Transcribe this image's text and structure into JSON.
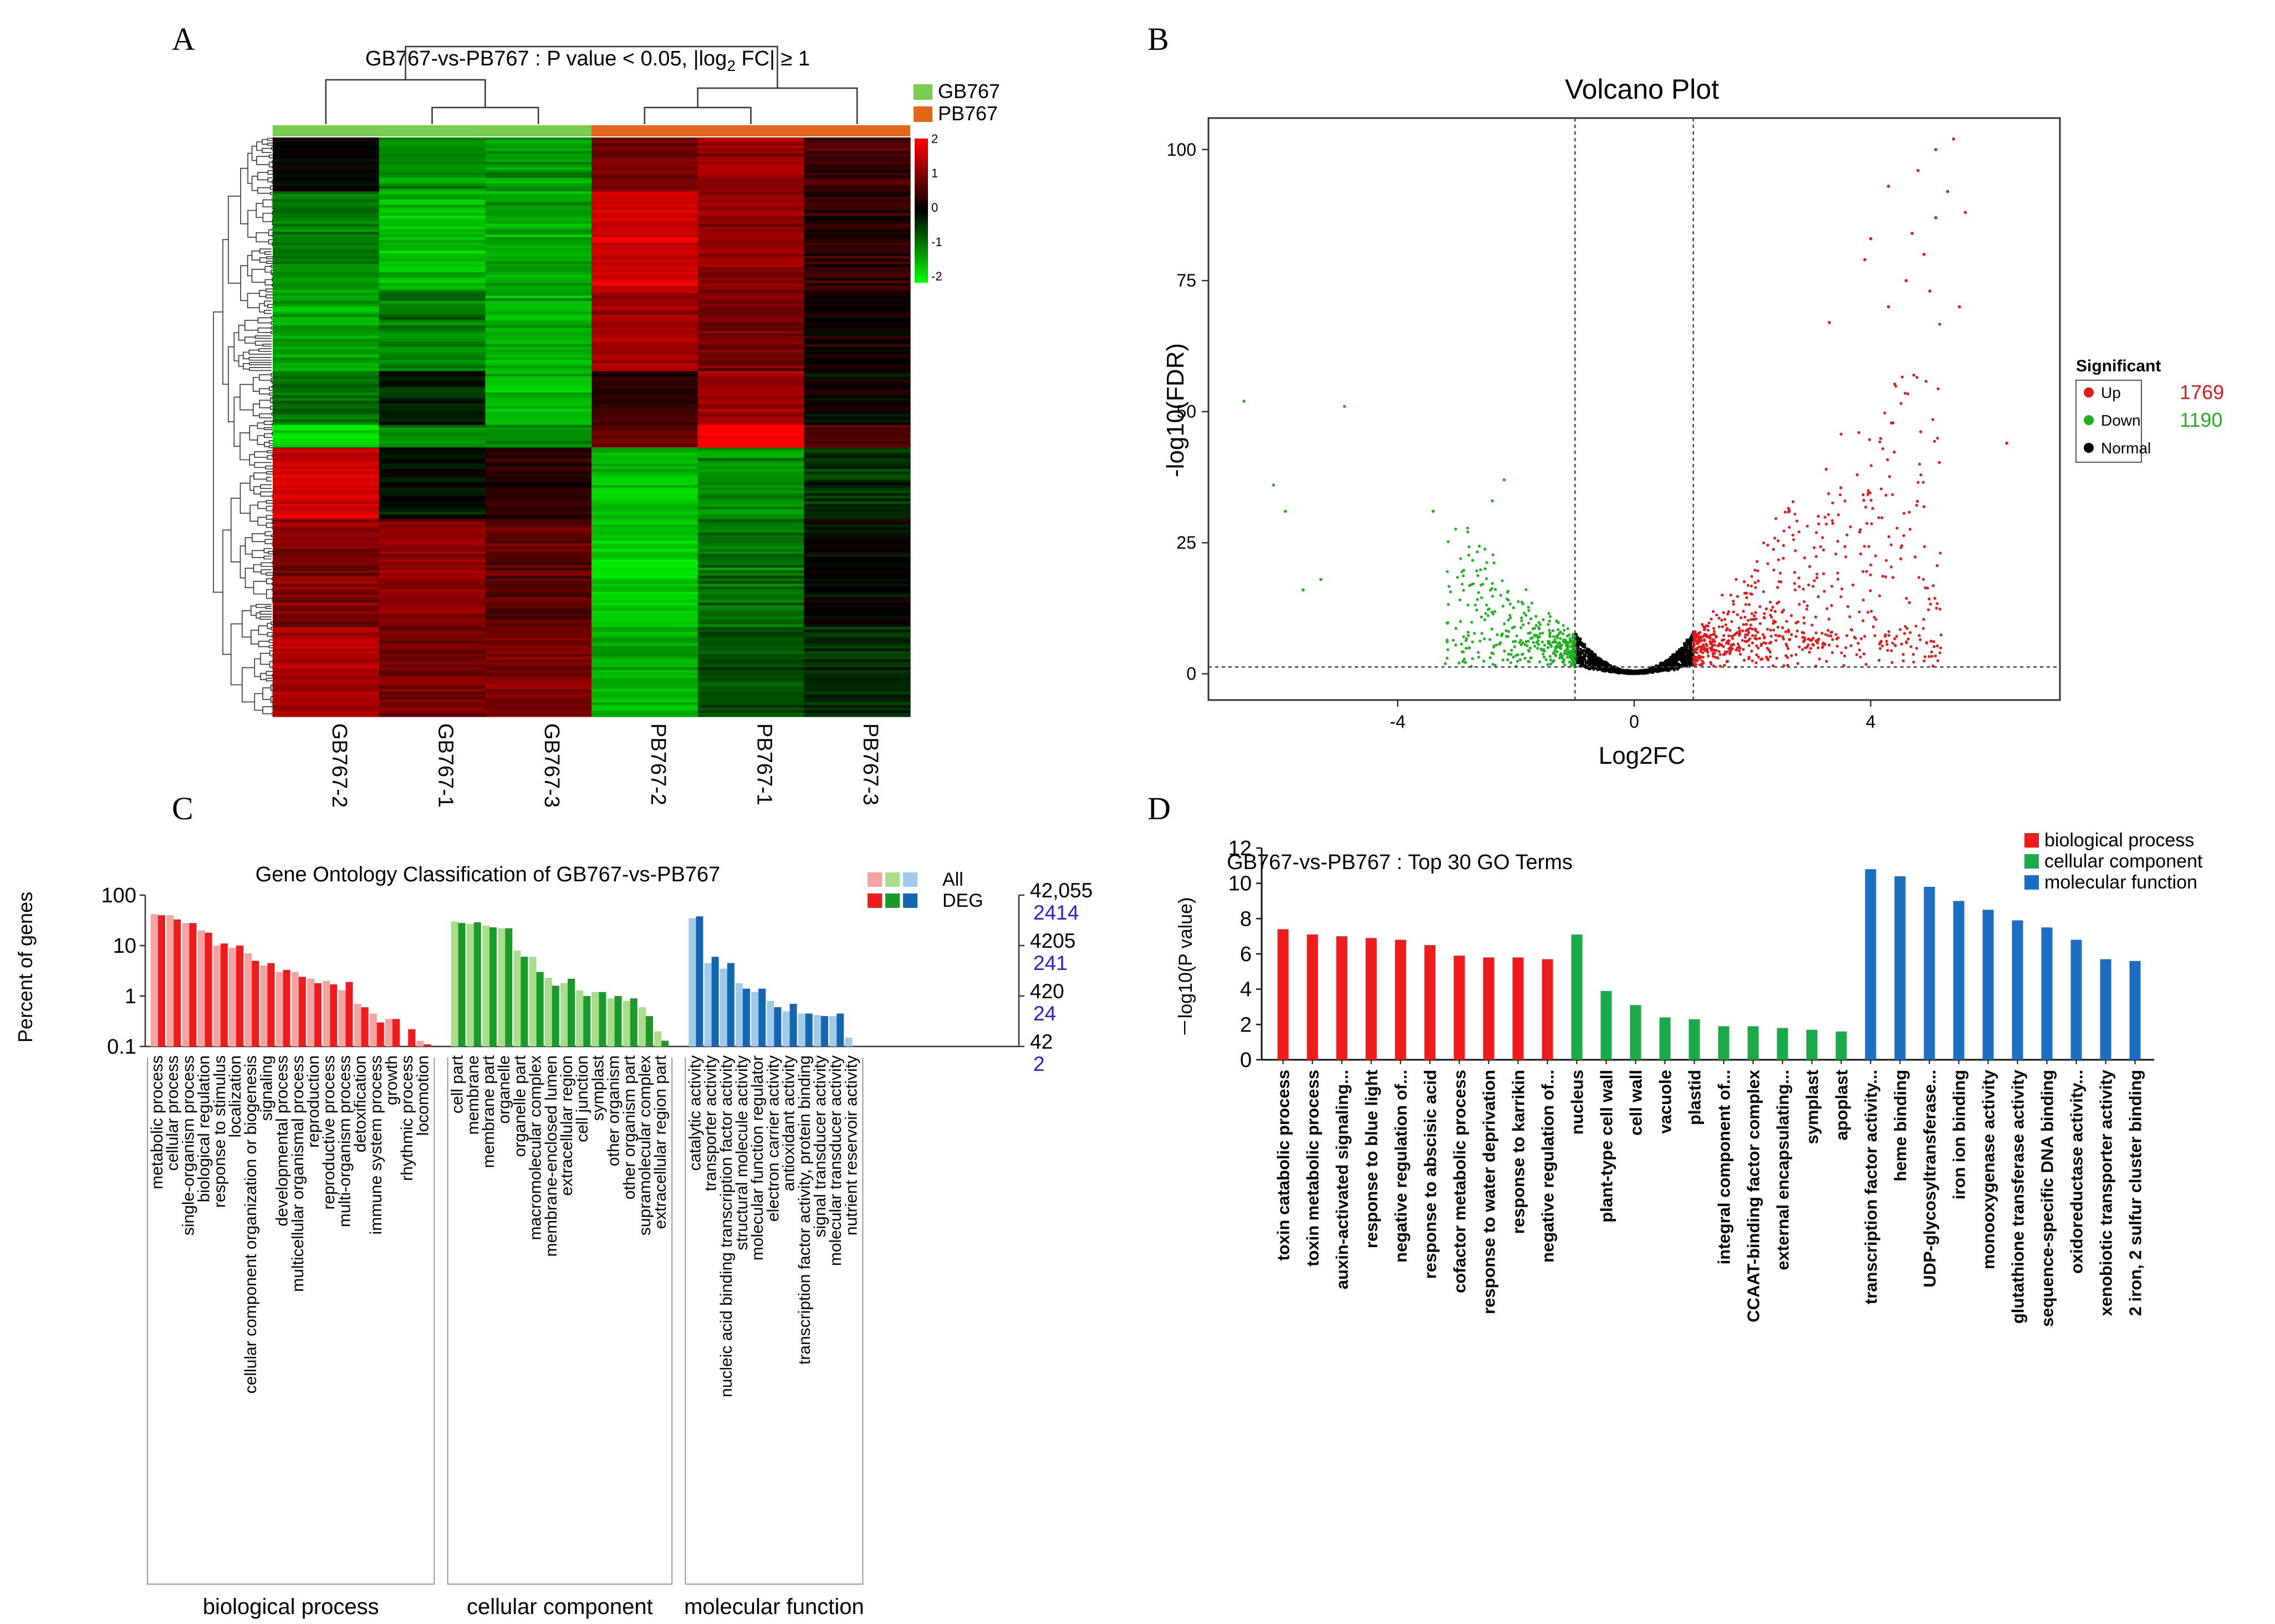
{
  "panels": {
    "A": {
      "letter": "A",
      "title_prefix": "GB767-vs-PB767 : P value < 0.05, |log",
      "title_sub": "2",
      "title_suffix": " FC| ≥ 1",
      "groups": [
        {
          "name": "GB767",
          "color": "#7acc4f"
        },
        {
          "name": "PB767",
          "color": "#e2661c"
        }
      ],
      "samples": [
        "GB767-2",
        "GB767-1",
        "GB767-3",
        "PB767-2",
        "PB767-1",
        "PB767-3"
      ],
      "scale_ticks": [
        "2",
        "1",
        "0",
        "-1",
        "-2"
      ],
      "colors": {
        "high": "#ff0000",
        "mid": "#000000",
        "low": "#00ff00"
      }
    },
    "B": {
      "letter": "B",
      "title": "Volcano Plot",
      "xlabel": "Log2FC",
      "ylabel": "-log10(FDR)",
      "x_ticks": [
        "-4",
        "0",
        "4"
      ],
      "y_ticks": [
        "0",
        "25",
        "50",
        "75",
        "100"
      ],
      "legend": {
        "title": "Significant",
        "items": [
          {
            "label": "Up",
            "color": "#e31a1c",
            "count": "1769"
          },
          {
            "label": "Down",
            "color": "#1fb21f",
            "count": "1190"
          },
          {
            "label": "Normal",
            "color": "#000000",
            "count": ""
          }
        ]
      }
    },
    "C": {
      "letter": "C",
      "title": "Gene Ontology Classification of GB767-vs-PB767",
      "ylabel": "Percent of genes",
      "left_ticks": [
        "100",
        "10",
        "1",
        "0.1"
      ],
      "right_all": [
        "42,055",
        "4205",
        "420",
        "42"
      ],
      "right_deg": [
        "2414",
        "241",
        "24",
        "2"
      ],
      "legend_all": "All",
      "legend_deg": "DEG",
      "deg_color": "#2222dd"
    },
    "D": {
      "letter": "D",
      "title": "GB767-vs-PB767 : Top 30 GO Terms",
      "ylabel": "－log10(P value)",
      "y_ticks": [
        "0",
        "2",
        "4",
        "6",
        "8",
        "10",
        "12"
      ],
      "legend": [
        {
          "label": "biological process",
          "color": "#ee1c1c"
        },
        {
          "label": "cellular component",
          "color": "#1aaa4a"
        },
        {
          "label": "molecular function",
          "color": "#1b6ec2"
        }
      ]
    }
  },
  "chart_data": [
    {
      "id": "heatmap",
      "type": "heatmap",
      "title": "GB767-vs-PB767 : P value < 0.05, |log2 FC| ≥ 1",
      "columns": [
        "GB767-2",
        "GB767-1",
        "GB767-3",
        "PB767-2",
        "PB767-1",
        "PB767-3"
      ],
      "row_blocks": [
        {
          "rows": 60,
          "values": [
            0.0,
            -0.9,
            -1.0,
            0.7,
            1.0,
            0.4
          ]
        },
        {
          "rows": 110,
          "values": [
            -0.8,
            -1.2,
            -1.0,
            1.3,
            0.9,
            0.3
          ]
        },
        {
          "rows": 90,
          "values": [
            -1.0,
            -0.8,
            -1.1,
            1.0,
            0.7,
            0.1
          ]
        },
        {
          "rows": 60,
          "values": [
            -0.7,
            -0.2,
            -1.2,
            0.3,
            0.9,
            0.0
          ]
        },
        {
          "rows": 25,
          "values": [
            -1.4,
            -0.9,
            -0.9,
            0.6,
            1.6,
            0.5
          ]
        },
        {
          "rows": 80,
          "values": [
            1.3,
            -0.1,
            0.3,
            -1.2,
            -0.9,
            -0.3
          ]
        },
        {
          "rows": 120,
          "values": [
            0.8,
            0.9,
            0.6,
            -1.3,
            -0.7,
            0.0
          ]
        },
        {
          "rows": 100,
          "values": [
            1.1,
            0.7,
            0.8,
            -1.1,
            -0.5,
            -0.3
          ]
        }
      ],
      "color_range": [
        -2,
        2
      ],
      "groups": [
        "GB767",
        "PB767"
      ]
    },
    {
      "id": "volcano",
      "type": "scatter",
      "title": "Volcano Plot",
      "xlabel": "Log2FC",
      "ylabel": "-log10(FDR)",
      "xlim": [
        -7.2,
        7.2
      ],
      "ylim": [
        -5,
        106
      ],
      "fc_threshold": [
        -1,
        1
      ],
      "fdr_threshold": 1.3,
      "series": [
        {
          "name": "Up",
          "count": 1769,
          "labeled_points": [
            [
              5.4,
              102
            ],
            [
              5.1,
              100
            ],
            [
              4.8,
              96
            ],
            [
              5.3,
              92
            ],
            [
              4.3,
              93
            ],
            [
              5.6,
              88
            ],
            [
              5.1,
              87
            ],
            [
              4.7,
              84
            ],
            [
              4.0,
              83
            ],
            [
              4.9,
              80
            ],
            [
              3.9,
              79
            ],
            [
              4.6,
              75
            ],
            [
              5.0,
              73
            ],
            [
              4.3,
              70
            ],
            [
              5.5,
              70
            ],
            [
              3.3,
              67
            ],
            [
              6.3,
              44
            ]
          ]
        },
        {
          "name": "Down",
          "count": 1190,
          "labeled_points": [
            [
              -6.6,
              52
            ],
            [
              -4.9,
              51
            ],
            [
              -6.1,
              36
            ],
            [
              -5.9,
              31
            ],
            [
              -2.2,
              37
            ],
            [
              -5.3,
              18
            ],
            [
              -5.6,
              16
            ],
            [
              -3.4,
              31
            ],
            [
              -2.4,
              33
            ]
          ]
        },
        {
          "name": "Normal"
        }
      ]
    },
    {
      "id": "go_classification",
      "type": "bar",
      "title": "Gene Ontology Classification of GB767-vs-PB767",
      "ylabel": "Percent of genes",
      "yscale": "log",
      "ylim": [
        0.1,
        100
      ],
      "series_names": [
        "All",
        "DEG"
      ],
      "categories": [
        {
          "domain": "biological process",
          "name": "metabolic process",
          "all": 42,
          "deg": 40
        },
        {
          "domain": "biological process",
          "name": "cellular process",
          "all": 40,
          "deg": 33
        },
        {
          "domain": "biological process",
          "name": "single-organism process",
          "all": 28,
          "deg": 28
        },
        {
          "domain": "biological process",
          "name": "biological regulation",
          "all": 20,
          "deg": 18
        },
        {
          "domain": "biological process",
          "name": "response to stimulus",
          "all": 10,
          "deg": 11
        },
        {
          "domain": "biological process",
          "name": "localization",
          "all": 9,
          "deg": 10
        },
        {
          "domain": "biological process",
          "name": "cellular component organization or biogenesis",
          "all": 7,
          "deg": 5
        },
        {
          "domain": "biological process",
          "name": "signaling",
          "all": 4,
          "deg": 4.5
        },
        {
          "domain": "biological process",
          "name": "developmental process",
          "all": 3,
          "deg": 3.3
        },
        {
          "domain": "biological process",
          "name": "multicellular organismal process",
          "all": 3,
          "deg": 2.4
        },
        {
          "domain": "biological process",
          "name": "reproduction",
          "all": 2.2,
          "deg": 1.8
        },
        {
          "domain": "biological process",
          "name": "reproductive process",
          "all": 2,
          "deg": 1.7
        },
        {
          "domain": "biological process",
          "name": "multi-organism process",
          "all": 1.3,
          "deg": 1.9
        },
        {
          "domain": "biological process",
          "name": "detoxification",
          "all": 0.7,
          "deg": 0.6
        },
        {
          "domain": "biological process",
          "name": "immune system process",
          "all": 0.45,
          "deg": 0.3
        },
        {
          "domain": "biological process",
          "name": "growth",
          "all": 0.35,
          "deg": 0.35
        },
        {
          "domain": "biological process",
          "name": "rhythmic process",
          "all": 0.05,
          "deg": 0.22
        },
        {
          "domain": "biological process",
          "name": "locomotion",
          "all": 0.13,
          "deg": 0.11
        },
        {
          "domain": "cellular component",
          "name": "cell part",
          "all": 30,
          "deg": 28
        },
        {
          "domain": "cellular component",
          "name": "membrane",
          "all": 27,
          "deg": 29
        },
        {
          "domain": "cellular component",
          "name": "membrane part",
          "all": 25,
          "deg": 23
        },
        {
          "domain": "cellular component",
          "name": "organelle",
          "all": 22,
          "deg": 22
        },
        {
          "domain": "cellular component",
          "name": "organelle part",
          "all": 8,
          "deg": 6
        },
        {
          "domain": "cellular component",
          "name": "macromolecular complex",
          "all": 6,
          "deg": 3
        },
        {
          "domain": "cellular component",
          "name": "membrane-enclosed lumen",
          "all": 2.3,
          "deg": 1.6
        },
        {
          "domain": "cellular component",
          "name": "extracellular region",
          "all": 1.8,
          "deg": 2.2
        },
        {
          "domain": "cellular component",
          "name": "cell junction",
          "all": 1.3,
          "deg": 1.0
        },
        {
          "domain": "cellular component",
          "name": "symplast",
          "all": 1.2,
          "deg": 1.2
        },
        {
          "domain": "cellular component",
          "name": "other organism",
          "all": 0.9,
          "deg": 1.0
        },
        {
          "domain": "cellular component",
          "name": "other organism part",
          "all": 0.8,
          "deg": 0.9
        },
        {
          "domain": "cellular component",
          "name": "supramolecular complex",
          "all": 0.6,
          "deg": 0.4
        },
        {
          "domain": "cellular component",
          "name": "extracellular region part",
          "all": 0.2,
          "deg": 0.13
        },
        {
          "domain": "molecular function",
          "name": "catalytic activity",
          "all": 35,
          "deg": 38
        },
        {
          "domain": "molecular function",
          "name": "transporter activity",
          "all": 4.5,
          "deg": 6
        },
        {
          "domain": "molecular function",
          "name": "nucleic acid binding transcription factor activity",
          "all": 3.5,
          "deg": 4.5
        },
        {
          "domain": "molecular function",
          "name": "structural molecule activity",
          "all": 1.8,
          "deg": 1.4
        },
        {
          "domain": "molecular function",
          "name": "molecular function regulator",
          "all": 1.2,
          "deg": 1.4
        },
        {
          "domain": "molecular function",
          "name": "electron carrier activity",
          "all": 0.8,
          "deg": 0.6
        },
        {
          "domain": "molecular function",
          "name": "antioxidant activity",
          "all": 0.5,
          "deg": 0.7
        },
        {
          "domain": "molecular function",
          "name": "transcription factor activity, protein binding",
          "all": 0.45,
          "deg": 0.45
        },
        {
          "domain": "molecular function",
          "name": "signal transducer activity",
          "all": 0.42,
          "deg": 0.4
        },
        {
          "domain": "molecular function",
          "name": "molecular transducer activity",
          "all": 0.4,
          "deg": 0.45
        },
        {
          "domain": "molecular function",
          "name": "nutrient reservoir activity",
          "all": 0.15,
          "deg": 0.1
        }
      ]
    },
    {
      "id": "top30_go",
      "type": "bar",
      "title": "GB767-vs-PB767 : Top 30 GO Terms",
      "ylabel": "－log10(P value)",
      "ylim": [
        0,
        12
      ],
      "categories": [
        "toxin catabolic process",
        "toxin metabolic process",
        "auxin-activated signaling...",
        "response to blue light",
        "negative regulation of...",
        "response to abscisic acid",
        "cofactor metabolic process",
        "response to water deprivation",
        "response to karrikin",
        "negative regulation of...",
        "nucleus",
        "plant-type cell wall",
        "cell wall",
        "vacuole",
        "plastid",
        "integral component of...",
        "CCAAT-binding factor complex",
        "external encapsulating...",
        "symplast",
        "apoplast",
        "transcription factor activity...",
        "heme binding",
        "UDP-glycosyltransferase...",
        "iron ion binding",
        "monooxygenase activity",
        "glutathione transferase activity",
        "sequence-specific DNA binding",
        "oxidoreductase activity...",
        "xenobiotic transporter activity",
        "2 iron, 2 sulfur cluster binding"
      ],
      "values": [
        7.4,
        7.1,
        7.0,
        6.9,
        6.8,
        6.5,
        5.9,
        5.8,
        5.8,
        5.7,
        7.1,
        3.9,
        3.1,
        2.4,
        2.3,
        1.9,
        1.9,
        1.8,
        1.7,
        1.6,
        10.8,
        10.4,
        9.8,
        9.0,
        8.5,
        7.9,
        7.5,
        6.8,
        5.7,
        5.6
      ],
      "groups": [
        "biological process",
        "biological process",
        "biological process",
        "biological process",
        "biological process",
        "biological process",
        "biological process",
        "biological process",
        "biological process",
        "biological process",
        "cellular component",
        "cellular component",
        "cellular component",
        "cellular component",
        "cellular component",
        "cellular component",
        "cellular component",
        "cellular component",
        "cellular component",
        "cellular component",
        "molecular function",
        "molecular function",
        "molecular function",
        "molecular function",
        "molecular function",
        "molecular function",
        "molecular function",
        "molecular function",
        "molecular function",
        "molecular function"
      ]
    }
  ]
}
